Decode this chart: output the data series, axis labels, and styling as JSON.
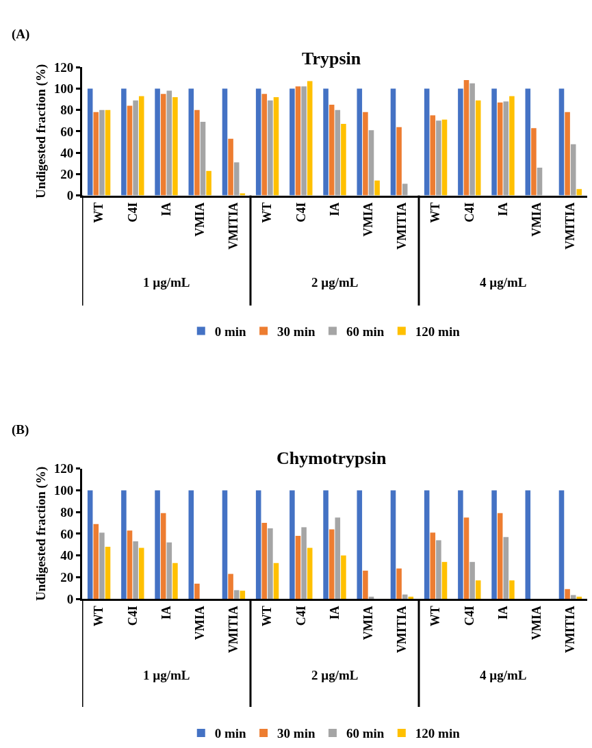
{
  "chart_data": [
    {
      "type": "bar",
      "title": "Trypsin",
      "ylabel": "Undigested fraction (%)",
      "annotations": [
        "(A)",
        "1 µg/mL",
        "2 µg/mL",
        "4 µg/mL"
      ],
      "categories": [
        "WT",
        "C4I",
        "IA",
        "VMIA",
        "VMITIA",
        "WT",
        "C4I",
        "IA",
        "VMIA",
        "VMITIA",
        "WT",
        "C4I",
        "IA",
        "VMIA",
        "VMITIA"
      ],
      "series": [
        {
          "name": "0 min",
          "color": "#4472c4",
          "values": [
            100,
            100,
            100,
            100,
            100,
            100,
            100,
            100,
            100,
            100,
            100,
            100,
            100,
            100,
            100
          ]
        },
        {
          "name": "30 min",
          "color": "#ed7d31",
          "values": [
            78,
            84,
            95,
            80,
            53,
            95,
            102,
            85,
            78,
            64,
            75,
            108,
            87,
            63,
            78
          ]
        },
        {
          "name": "60 min",
          "color": "#a5a5a5",
          "values": [
            80,
            89,
            98,
            69,
            31,
            89,
            102,
            80,
            61,
            11,
            70,
            105,
            88,
            26,
            48
          ]
        },
        {
          "name": "120 min",
          "color": "#ffc000",
          "values": [
            80,
            93,
            92,
            23,
            2,
            92,
            107,
            67,
            14,
            null,
            71,
            89,
            93,
            null,
            6
          ]
        }
      ],
      "ylim": [
        0,
        120
      ],
      "yticks": [
        0,
        20,
        40,
        60,
        80,
        100,
        120
      ],
      "legend": "bottom"
    },
    {
      "type": "bar",
      "title": "Chymotrypsin",
      "ylabel": "Undigested fraction (%)",
      "annotations": [
        "(B)",
        "1 µg/mL",
        "2 µg/mL",
        "4 µg/mL"
      ],
      "categories": [
        "WT",
        "C4I",
        "IA",
        "VMIA",
        "VMITIA",
        "WT",
        "C4I",
        "IA",
        "VMIA",
        "VMITIA",
        "WT",
        "C4I",
        "IA",
        "VMIA",
        "VMITIA"
      ],
      "series": [
        {
          "name": "0 min",
          "color": "#4472c4",
          "values": [
            100,
            100,
            100,
            100,
            100,
            100,
            100,
            100,
            100,
            100,
            100,
            100,
            100,
            100,
            100
          ]
        },
        {
          "name": "30 min",
          "color": "#ed7d31",
          "values": [
            69,
            63,
            79,
            14,
            23,
            70,
            58,
            64,
            26,
            28,
            61,
            75,
            79,
            null,
            9
          ]
        },
        {
          "name": "60 min",
          "color": "#a5a5a5",
          "values": [
            61,
            53,
            52,
            null,
            8,
            65,
            66,
            75,
            2,
            4,
            54,
            34,
            57,
            null,
            3.5
          ]
        },
        {
          "name": "120 min",
          "color": "#ffc000",
          "values": [
            48,
            47,
            33,
            null,
            7.5,
            33,
            47,
            40,
            null,
            2,
            34,
            17,
            17,
            null,
            2
          ]
        }
      ],
      "ylim": [
        0,
        120
      ],
      "yticks": [
        0,
        20,
        40,
        60,
        80,
        100,
        120
      ],
      "legend": "bottom"
    }
  ]
}
